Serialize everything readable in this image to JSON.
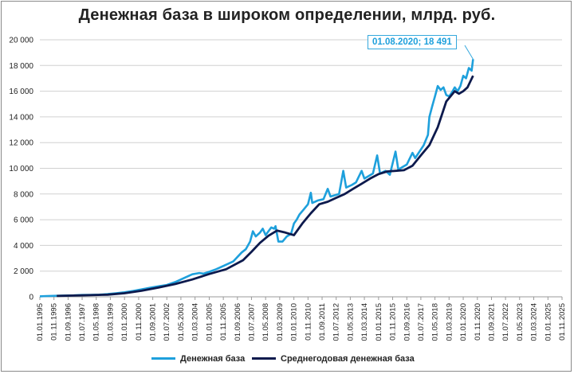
{
  "chart_data": {
    "type": "line",
    "title": "Денежная база в широком определении, млрд. руб.",
    "ylim": [
      0,
      20000
    ],
    "yticks": [
      0,
      2000,
      4000,
      6000,
      8000,
      10000,
      12000,
      14000,
      16000,
      18000,
      20000
    ],
    "ytick_labels": [
      "0",
      "2 000",
      "4 000",
      "6 000",
      "8 000",
      "10 000",
      "12 000",
      "14 000",
      "16 000",
      "18 000",
      "20 000"
    ],
    "xlim": [
      "1995-01-01",
      "2025-11-01"
    ],
    "xtick_labels": [
      "01.01.1995",
      "01.11.1995",
      "01.09.1996",
      "01.07.1997",
      "01.05.1998",
      "01.03.1999",
      "01.01.2000",
      "01.11.2000",
      "01.09.2001",
      "01.07.2002",
      "01.05.2003",
      "01.03.2004",
      "01.01.2005",
      "01.11.2005",
      "01.09.2006",
      "01.07.2007",
      "01.05.2008",
      "01.03.2009",
      "01.01.2010",
      "01.11.2010",
      "01.09.2011",
      "01.07.2012",
      "01.05.2013",
      "01.03.2014",
      "01.01.2015",
      "01.11.2015",
      "01.09.2016",
      "01.07.2017",
      "01.05.2018",
      "01.03.2019",
      "01.01.2020",
      "01.11.2020",
      "01.09.2021",
      "01.07.2022",
      "01.05.2023",
      "01.03.2024",
      "01.01.2025",
      "01.11.2025"
    ],
    "grid": "horizontal",
    "legend_position": "bottom",
    "annotation": {
      "text": "01.08.2020;  18 491",
      "x": "2020-08-01",
      "y": 18491
    },
    "series": [
      {
        "name": "Денежная база",
        "color": "#1ea0dc",
        "points": [
          [
            "1995-01-01",
            40
          ],
          [
            "1995-06-01",
            60
          ],
          [
            "1996-01-01",
            80
          ],
          [
            "1996-07-01",
            100
          ],
          [
            "1997-01-01",
            110
          ],
          [
            "1997-07-01",
            140
          ],
          [
            "1998-01-01",
            150
          ],
          [
            "1998-07-01",
            170
          ],
          [
            "1999-01-01",
            210
          ],
          [
            "1999-07-01",
            280
          ],
          [
            "2000-01-01",
            350
          ],
          [
            "2000-07-01",
            450
          ],
          [
            "2001-01-01",
            580
          ],
          [
            "2001-07-01",
            700
          ],
          [
            "2002-01-01",
            820
          ],
          [
            "2002-07-01",
            920
          ],
          [
            "2003-01-01",
            1150
          ],
          [
            "2003-07-01",
            1450
          ],
          [
            "2004-01-01",
            1750
          ],
          [
            "2004-06-01",
            1850
          ],
          [
            "2004-09-01",
            1800
          ],
          [
            "2005-01-01",
            1950
          ],
          [
            "2005-06-01",
            2150
          ],
          [
            "2005-12-01",
            2450
          ],
          [
            "2006-06-01",
            2750
          ],
          [
            "2006-12-01",
            3450
          ],
          [
            "2007-03-01",
            3700
          ],
          [
            "2007-06-01",
            4300
          ],
          [
            "2007-08-01",
            5100
          ],
          [
            "2007-10-01",
            4700
          ],
          [
            "2008-01-01",
            5000
          ],
          [
            "2008-03-01",
            5300
          ],
          [
            "2008-05-01",
            4800
          ],
          [
            "2008-07-01",
            5100
          ],
          [
            "2008-09-01",
            5400
          ],
          [
            "2008-11-01",
            5300
          ],
          [
            "2008-12-01",
            5500
          ],
          [
            "2009-02-01",
            4300
          ],
          [
            "2009-05-01",
            4300
          ],
          [
            "2009-08-01",
            4700
          ],
          [
            "2009-11-01",
            4900
          ],
          [
            "2010-01-01",
            5700
          ],
          [
            "2010-03-01",
            6000
          ],
          [
            "2010-05-01",
            6400
          ],
          [
            "2010-08-01",
            6800
          ],
          [
            "2010-11-01",
            7200
          ],
          [
            "2011-01-01",
            8100
          ],
          [
            "2011-02-01",
            7300
          ],
          [
            "2011-06-01",
            7500
          ],
          [
            "2011-10-01",
            7600
          ],
          [
            "2012-01-01",
            8400
          ],
          [
            "2012-03-01",
            7800
          ],
          [
            "2012-06-01",
            7900
          ],
          [
            "2012-09-01",
            8000
          ],
          [
            "2012-12-01",
            9800
          ],
          [
            "2013-02-01",
            8500
          ],
          [
            "2013-06-01",
            8700
          ],
          [
            "2013-09-01",
            8900
          ],
          [
            "2014-01-01",
            9800
          ],
          [
            "2014-03-01",
            9200
          ],
          [
            "2014-06-01",
            9400
          ],
          [
            "2014-09-01",
            9600
          ],
          [
            "2014-12-01",
            11000
          ],
          [
            "2015-02-01",
            9600
          ],
          [
            "2015-06-01",
            9800
          ],
          [
            "2015-09-01",
            9500
          ],
          [
            "2016-01-01",
            11300
          ],
          [
            "2016-03-01",
            9900
          ],
          [
            "2016-06-01",
            10100
          ],
          [
            "2016-09-01",
            10300
          ],
          [
            "2017-01-01",
            11200
          ],
          [
            "2017-03-01",
            10800
          ],
          [
            "2017-06-01",
            11300
          ],
          [
            "2017-09-01",
            11800
          ],
          [
            "2017-12-01",
            12600
          ],
          [
            "2018-01-01",
            14000
          ],
          [
            "2018-03-01",
            14800
          ],
          [
            "2018-05-01",
            15600
          ],
          [
            "2018-07-01",
            16400
          ],
          [
            "2018-09-01",
            16100
          ],
          [
            "2018-11-01",
            16300
          ],
          [
            "2019-01-01",
            15700
          ],
          [
            "2019-03-01",
            15600
          ],
          [
            "2019-05-01",
            15900
          ],
          [
            "2019-07-01",
            16300
          ],
          [
            "2019-09-01",
            16000
          ],
          [
            "2019-11-01",
            16400
          ],
          [
            "2020-01-01",
            17200
          ],
          [
            "2020-03-01",
            17000
          ],
          [
            "2020-05-01",
            17800
          ],
          [
            "2020-07-01",
            17600
          ],
          [
            "2020-08-01",
            18491
          ]
        ]
      },
      {
        "name": "Среднегодовая денежная база",
        "color": "#0d1a4d",
        "points": [
          [
            "1996-01-01",
            70
          ],
          [
            "1997-01-01",
            100
          ],
          [
            "1998-01-01",
            130
          ],
          [
            "1999-01-01",
            170
          ],
          [
            "2000-01-01",
            280
          ],
          [
            "2001-01-01",
            470
          ],
          [
            "2002-01-01",
            720
          ],
          [
            "2003-01-01",
            1000
          ],
          [
            "2004-01-01",
            1350
          ],
          [
            "2005-01-01",
            1780
          ],
          [
            "2006-01-01",
            2150
          ],
          [
            "2007-01-01",
            2850
          ],
          [
            "2007-07-01",
            3500
          ],
          [
            "2008-01-01",
            4200
          ],
          [
            "2008-07-01",
            4750
          ],
          [
            "2009-01-01",
            5150
          ],
          [
            "2009-07-01",
            5000
          ],
          [
            "2010-01-01",
            4800
          ],
          [
            "2010-07-01",
            5700
          ],
          [
            "2011-01-01",
            6500
          ],
          [
            "2011-07-01",
            7200
          ],
          [
            "2012-01-01",
            7400
          ],
          [
            "2012-07-01",
            7700
          ],
          [
            "2013-01-01",
            8000
          ],
          [
            "2013-07-01",
            8400
          ],
          [
            "2014-01-01",
            8800
          ],
          [
            "2014-07-01",
            9200
          ],
          [
            "2015-01-01",
            9550
          ],
          [
            "2015-07-01",
            9750
          ],
          [
            "2016-01-01",
            9800
          ],
          [
            "2016-07-01",
            9850
          ],
          [
            "2017-01-01",
            10200
          ],
          [
            "2017-07-01",
            11000
          ],
          [
            "2018-01-01",
            11800
          ],
          [
            "2018-07-01",
            13200
          ],
          [
            "2019-01-01",
            15200
          ],
          [
            "2019-07-01",
            16000
          ],
          [
            "2019-10-01",
            15800
          ],
          [
            "2020-01-01",
            16000
          ],
          [
            "2020-04-01",
            16300
          ],
          [
            "2020-08-01",
            17200
          ]
        ]
      }
    ]
  }
}
